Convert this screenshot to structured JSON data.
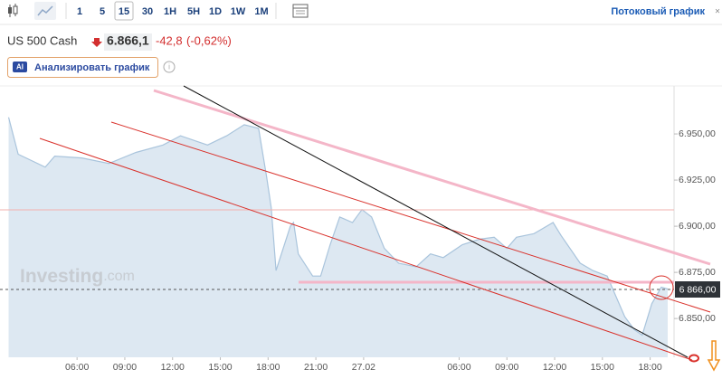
{
  "toolbar": {
    "intervals": [
      "1",
      "5",
      "15",
      "30",
      "1H",
      "5H",
      "1D",
      "1W",
      "1M"
    ],
    "selected": "15",
    "stream_link": "Потоковый график",
    "close": "×"
  },
  "quote": {
    "name": "US 500 Cash",
    "price": "6.866,1",
    "change": "-42,8",
    "change_pct": "(-0,62%)"
  },
  "analyze_button": {
    "badge": "AI",
    "label": "Анализировать график"
  },
  "watermark": {
    "brand": "Investing",
    "suffix": ".com"
  },
  "price_label": "6 866,00",
  "chart_data": {
    "type": "area",
    "color": "#a9c4dc",
    "fill": "#dde8f2",
    "x": [
      1.7,
      2.3,
      4.0,
      4.6,
      6.3,
      8.0,
      9.7,
      11.4,
      12.5,
      14.2,
      15.4,
      16.5,
      17.4,
      17.9,
      18.2,
      18.5,
      19.4,
      19.6,
      19.9,
      20.8,
      21.3,
      21.9,
      22.5,
      23.3,
      23.9,
      24.5,
      25.3,
      26.2,
      27.3,
      28.2,
      29.0,
      30.2,
      31.3,
      32.2,
      33.0,
      33.6,
      34.7,
      35.9,
      36.4,
      37.6,
      38.4,
      39.3,
      40.4,
      41.0,
      41.5,
      42.1,
      42.7,
      43.1
    ],
    "values": [
      6959,
      6939,
      6932,
      6938,
      6937,
      6934,
      6940,
      6944,
      6949,
      6944,
      6949,
      6955,
      6953,
      6927,
      6910,
      6876,
      6900,
      6902,
      6885,
      6873,
      6873,
      6890,
      6905,
      6902,
      6909,
      6905,
      6888,
      6880,
      6878,
      6885,
      6883,
      6890,
      6893,
      6894,
      6888,
      6894,
      6896,
      6902,
      6895,
      6880,
      6876,
      6873,
      6851,
      6844,
      6841,
      6858,
      6867,
      6866
    ],
    "xlim": [
      1.16,
      43.5
    ],
    "xticks": [
      {
        "value": 6,
        "label": "06:00"
      },
      {
        "value": 9,
        "label": "09:00"
      },
      {
        "value": 12,
        "label": "12:00"
      },
      {
        "value": 15,
        "label": "15:00"
      },
      {
        "value": 18,
        "label": "18:00"
      },
      {
        "value": 21,
        "label": "21:00"
      },
      {
        "value": 24,
        "label": "27.02"
      },
      {
        "value": 30,
        "label": "06:00"
      },
      {
        "value": 33,
        "label": "09:00"
      },
      {
        "value": 36,
        "label": "12:00"
      },
      {
        "value": 39,
        "label": "15:00"
      },
      {
        "value": 42,
        "label": "18:00"
      }
    ],
    "ylim": [
      6829,
      6976
    ],
    "yticks": [
      {
        "value": 6850,
        "label": "6.850,00"
      },
      {
        "value": 6875,
        "label": "6.875,00"
      },
      {
        "value": 6900,
        "label": "6.900,00"
      },
      {
        "value": 6925,
        "label": "6.925,00"
      },
      {
        "value": 6950,
        "label": "6.950,00"
      }
    ]
  }
}
